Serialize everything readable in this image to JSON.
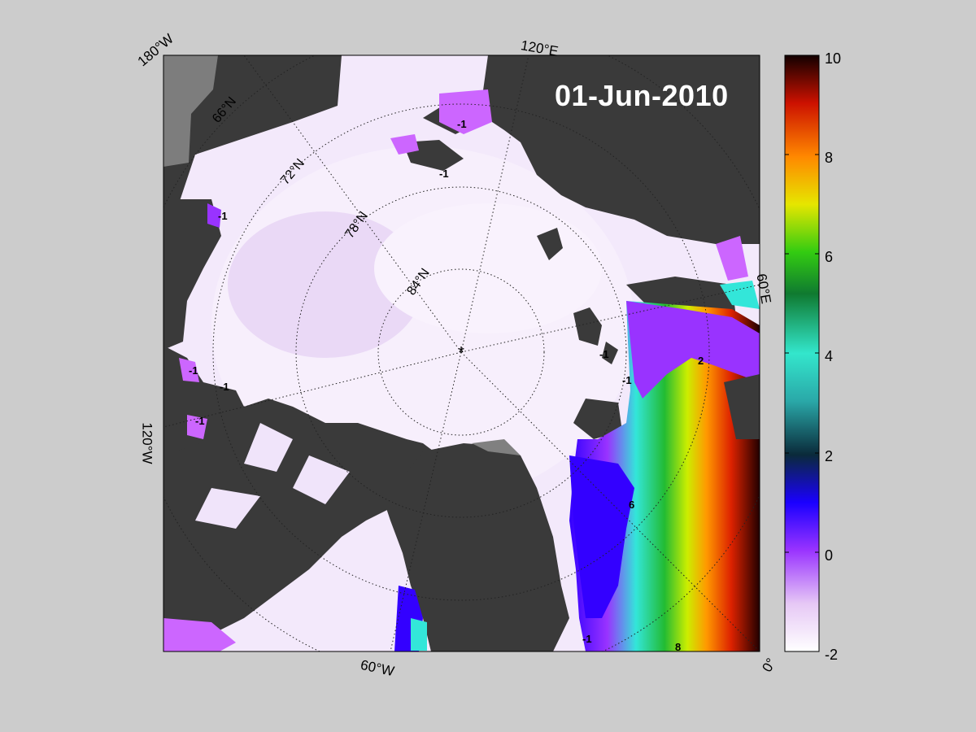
{
  "map": {
    "date": "01-Jun-2010",
    "pole_marker": "*",
    "longitude_labels": {
      "w180": "180°W",
      "e120": "120°E",
      "e60": "60°E",
      "w120": "120°W",
      "w60": "60°W",
      "zero": "0°"
    },
    "latitude_labels": [
      "66°N",
      "72°N",
      "78°N",
      "84°N"
    ],
    "contour_labels": [
      "-1",
      "-1",
      "-1",
      "-1",
      "-1",
      "-1",
      "-1",
      "-1",
      "-1",
      "2",
      "6",
      "8"
    ]
  },
  "colorbar": {
    "ticks": [
      "10",
      "8",
      "6",
      "4",
      "2",
      "0",
      "-2"
    ],
    "min": -2,
    "max": 10
  },
  "colors": {
    "background": "#cccccc",
    "land": "#3a3a3a",
    "grey_region": "#808080",
    "ice_cold": "#f2e6fa",
    "ice_violet": "#cc66ff"
  }
}
